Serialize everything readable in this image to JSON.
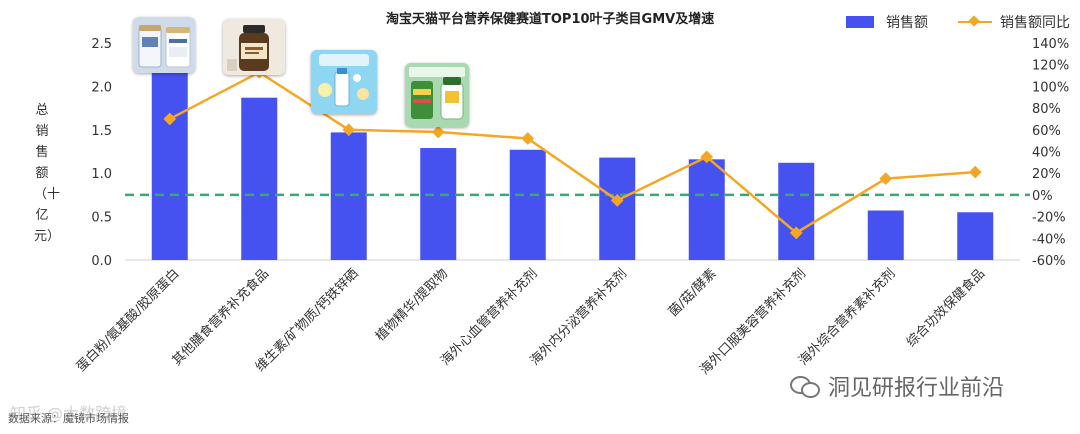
{
  "chart_data": {
    "type": "bar",
    "title": "淘宝天猫平台营养保健赛道TOP10叶子类目GMV及增速",
    "categories": [
      "蛋白粉/氨基酸/胶原蛋白",
      "其他膳食营养补充食品",
      "维生素/矿物质/钙铁锌硒",
      "植物精华/提取物",
      "海外心血管营养补充剂",
      "海外内分泌营养补充剂",
      "菌/菇/酵素",
      "海外口服美容营养补充剂",
      "海外综合营养素补充剂",
      "综合功效保健食品"
    ],
    "series": [
      {
        "name": "销售额",
        "axis": "left",
        "type": "bar",
        "color": "#4552f0",
        "values": [
          2.45,
          1.87,
          1.47,
          1.29,
          1.27,
          1.18,
          1.16,
          1.12,
          0.57,
          0.55
        ]
      },
      {
        "name": "销售额同比",
        "axis": "right",
        "type": "line",
        "unit": "%",
        "color": "#f5a623",
        "values": [
          70,
          113,
          60,
          58,
          52,
          -5,
          35,
          -35,
          15,
          21
        ]
      }
    ],
    "ylabel": "总销售额（十亿元）",
    "y_left": {
      "range": [
        0,
        2.5
      ],
      "ticks": [
        "0.0",
        "0.5",
        "1.0",
        "1.5",
        "2.0",
        "2.5"
      ]
    },
    "y_right": {
      "range": [
        -60,
        140
      ],
      "ticks": [
        "-60%",
        "-40%",
        "-20%",
        "0%",
        "20%",
        "40%",
        "60%",
        "80%",
        "100%",
        "120%",
        "140%"
      ]
    },
    "reference_line": {
      "axis": "right",
      "value": 0,
      "style": "dashed",
      "color": "#3aa875"
    },
    "legend_position": "top-right",
    "grid": false
  },
  "source": "数据来源：魔镜市场情报",
  "watermark": "洞见研报行业前沿",
  "faint_watermark": "知乎 @大数跨境",
  "product_images": [
    {
      "name": "collagen-powder-can-icon",
      "bar": 0
    },
    {
      "name": "supplement-bottle-icon",
      "bar": 1
    },
    {
      "name": "vitamin-vial-icon",
      "bar": 2
    },
    {
      "name": "plant-extract-bottle-icon",
      "bar": 3
    }
  ]
}
